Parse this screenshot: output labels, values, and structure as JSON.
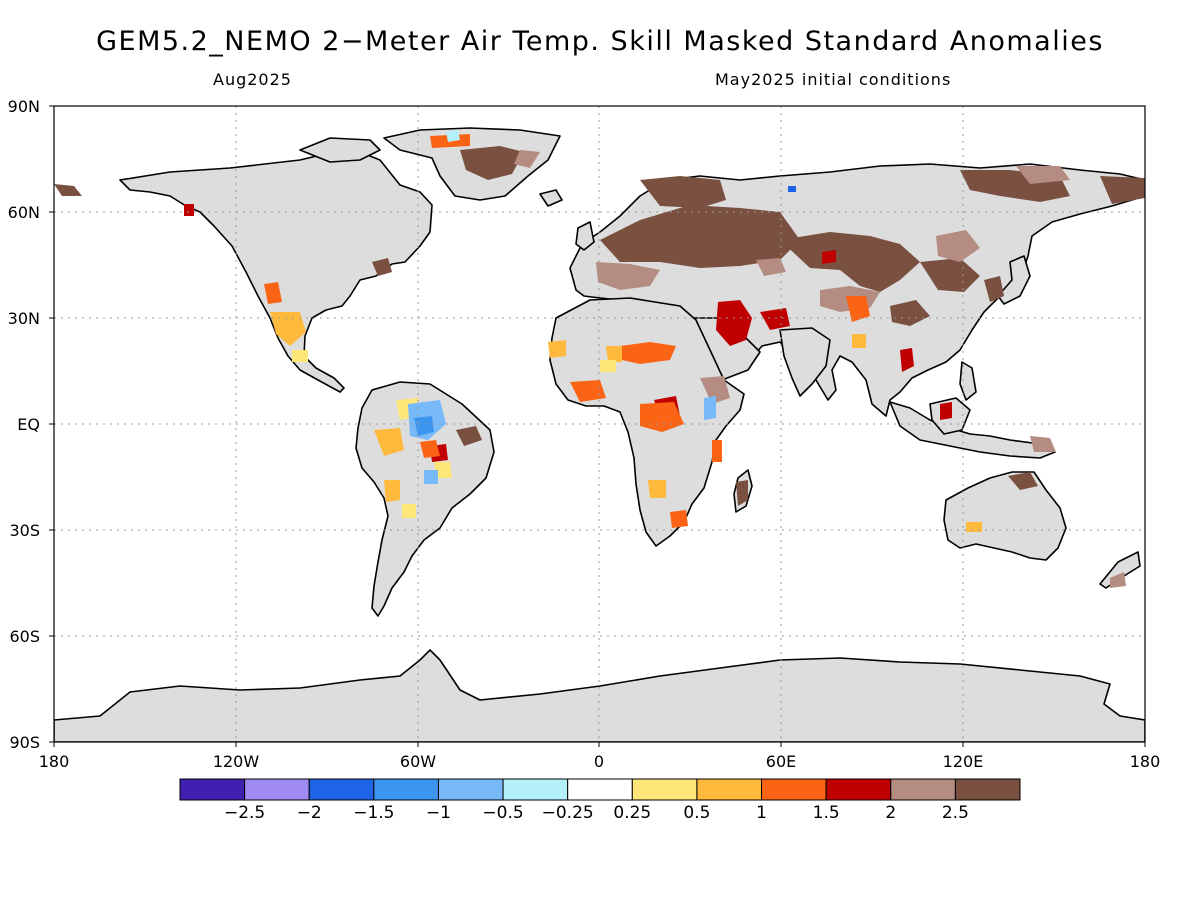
{
  "title": "GEM5.2_NEMO 2−Meter Air Temp. Skill Masked Standard Anomalies",
  "valid_period": "Aug2025",
  "initial_conditions": "May2025 initial conditions",
  "lat_labels": [
    "90N",
    "60N",
    "30N",
    "EQ",
    "30S",
    "60S",
    "90S"
  ],
  "lon_labels": [
    "180",
    "120W",
    "60W",
    "0",
    "60E",
    "120E",
    "180"
  ],
  "colorbar": {
    "colors": [
      "#3f20b0",
      "#a08cf0",
      "#1e64e6",
      "#3c96f0",
      "#78b9fa",
      "#b4f0fa",
      "#ffffff",
      "#ffe678",
      "#ffb93c",
      "#fa6414",
      "#c00000",
      "#b48c82",
      "#7a5040"
    ],
    "labels": [
      "−2.5",
      "−2",
      "−1.5",
      "−1",
      "−0.5",
      "−0.25",
      "0.25",
      "0.5",
      "1",
      "1.5",
      "2",
      "2.5"
    ]
  },
  "colors": {
    "land_masked": "#dddddd",
    "coastline": "#000000",
    "grid": "#999999"
  }
}
